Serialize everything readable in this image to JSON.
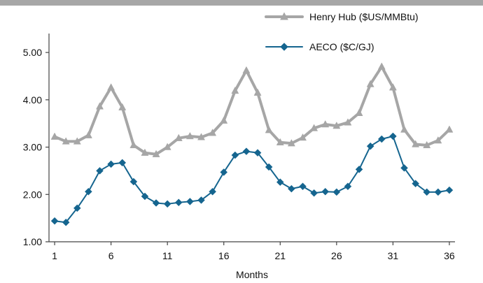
{
  "chart_data": {
    "type": "line",
    "title": "",
    "xlabel": "Months",
    "ylabel": "",
    "x": [
      1,
      2,
      3,
      4,
      5,
      6,
      7,
      8,
      9,
      10,
      11,
      12,
      13,
      14,
      15,
      16,
      17,
      18,
      19,
      20,
      21,
      22,
      23,
      24,
      25,
      26,
      27,
      28,
      29,
      30,
      31,
      32,
      33,
      34,
      35,
      36
    ],
    "x_tick_labels": [
      "1",
      "6",
      "11",
      "16",
      "21",
      "26",
      "31",
      "36"
    ],
    "x_tick_values": [
      1,
      6,
      11,
      16,
      21,
      26,
      31,
      36
    ],
    "y_tick_labels": [
      "1.00",
      "2.00",
      "3.00",
      "4.00",
      "5.00"
    ],
    "y_tick_values": [
      1,
      2,
      3,
      4,
      5
    ],
    "xlim": [
      0.5,
      36.5
    ],
    "ylim": [
      1,
      5.4
    ],
    "grid": false,
    "legend_position": "top-right",
    "series": [
      {
        "name": "Henry Hub ($US/MMBtu)",
        "color": "#a6a6a6",
        "marker": "triangle",
        "values": [
          3.22,
          3.12,
          3.12,
          3.25,
          3.86,
          4.26,
          3.84,
          3.04,
          2.88,
          2.85,
          3.0,
          3.19,
          3.23,
          3.21,
          3.3,
          3.56,
          4.19,
          4.62,
          4.15,
          3.36,
          3.1,
          3.08,
          3.2,
          3.4,
          3.48,
          3.45,
          3.52,
          3.72,
          4.33,
          4.7,
          4.26,
          3.37,
          3.06,
          3.04,
          3.14,
          3.37
        ]
      },
      {
        "name": "AECO ($C/GJ)",
        "color": "#15658f",
        "marker": "diamond",
        "values": [
          1.44,
          1.41,
          1.71,
          2.06,
          2.5,
          2.64,
          2.67,
          2.27,
          1.96,
          1.82,
          1.8,
          1.83,
          1.85,
          1.88,
          2.06,
          2.47,
          2.83,
          2.91,
          2.88,
          2.58,
          2.26,
          2.12,
          2.17,
          2.03,
          2.06,
          2.05,
          2.17,
          2.53,
          3.02,
          3.17,
          3.23,
          2.56,
          2.23,
          2.05,
          2.05,
          2.09
        ]
      }
    ]
  }
}
